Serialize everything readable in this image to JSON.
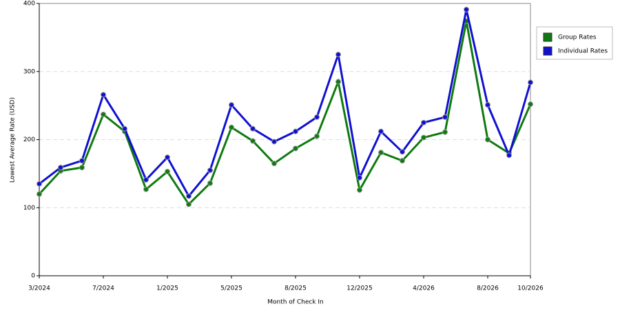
{
  "chart_data": {
    "type": "line",
    "x_label": "Month of Check In",
    "y_label": "Lowest Average Rate (USD)",
    "categories": [
      "3/2024",
      null,
      null,
      "7/2024",
      null,
      null,
      "1/2025",
      null,
      null,
      "5/2025",
      null,
      null,
      "8/2025",
      null,
      null,
      "12/2025",
      null,
      null,
      "4/2026",
      null,
      null,
      "8/2026",
      null,
      "10/2026"
    ],
    "series": [
      {
        "name": "Group Rates",
        "color": "#0f7a0f",
        "values": [
          120,
          154,
          159,
          237,
          212,
          127,
          153,
          105,
          136,
          218,
          198,
          165,
          187,
          205,
          285,
          126,
          181,
          169,
          203,
          211,
          374,
          200,
          180,
          252
        ]
      },
      {
        "name": "Individual Rates",
        "color": "#1010d0",
        "values": [
          135,
          159,
          169,
          266,
          216,
          141,
          174,
          117,
          155,
          251,
          216,
          197,
          212,
          233,
          325,
          144,
          212,
          182,
          225,
          233,
          391,
          251,
          177,
          284
        ]
      }
    ],
    "ylim": [
      0,
      400
    ],
    "yticks": [
      0,
      100,
      200,
      300,
      400
    ],
    "grid": true,
    "legend": "right"
  }
}
